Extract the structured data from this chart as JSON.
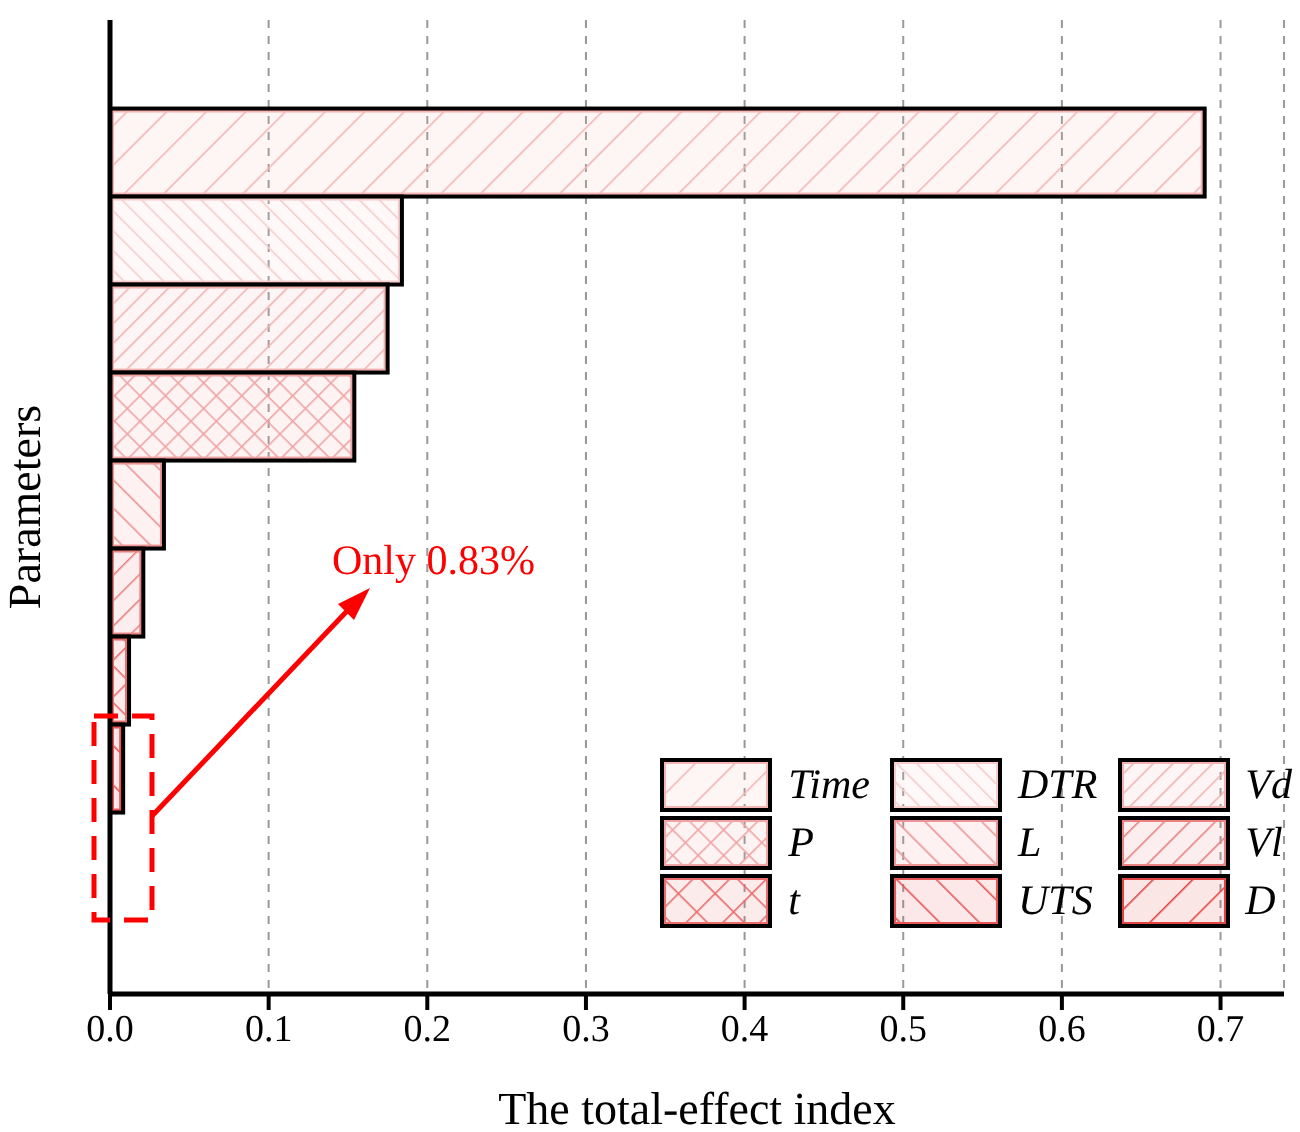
{
  "chart_data": {
    "type": "bar",
    "orientation": "horizontal",
    "xlabel": "The total-effect index",
    "ylabel": "Parameters",
    "categories": [
      null,
      null,
      null,
      null,
      null,
      null,
      null,
      null,
      null,
      null,
      null
    ],
    "series": [
      {
        "name": "Time",
        "color": "#f5b5b5",
        "values": [
          null,
          0.69,
          null,
          null,
          null,
          null,
          null,
          null,
          null,
          null,
          null
        ]
      },
      {
        "name": "DTR",
        "color": "#f6cccc",
        "values": [
          null,
          null,
          0.184,
          null,
          null,
          null,
          null,
          null,
          null,
          null,
          null
        ]
      },
      {
        "name": "Vd",
        "color": "#f2b2b2",
        "values": [
          null,
          null,
          null,
          0.175,
          null,
          null,
          null,
          null,
          null,
          null,
          null
        ]
      },
      {
        "name": "P",
        "color": "#f0a4a4",
        "values": [
          null,
          null,
          null,
          null,
          0.154,
          null,
          null,
          null,
          null,
          null,
          null
        ]
      },
      {
        "name": "L",
        "color": "#ee9494",
        "values": [
          null,
          null,
          null,
          null,
          null,
          0.034,
          null,
          null,
          null,
          null,
          null
        ]
      },
      {
        "name": "Vl",
        "color": "#ea8282",
        "values": [
          null,
          null,
          null,
          null,
          null,
          null,
          0.021,
          null,
          null,
          null,
          null
        ]
      },
      {
        "name": "t",
        "color": "#ea6c6c",
        "values": [
          null,
          null,
          null,
          null,
          null,
          null,
          null,
          0.012,
          null,
          null,
          null
        ]
      },
      {
        "name": "UTS",
        "color": "#e65656",
        "values": [
          null,
          null,
          null,
          null,
          null,
          null,
          null,
          null,
          0.0083,
          null,
          null
        ]
      },
      {
        "name": "D",
        "color": "#e24444",
        "values": [
          null,
          null,
          null,
          null,
          null,
          null,
          null,
          null,
          null,
          null,
          null
        ]
      }
    ],
    "xlim": [
      0,
      0.74
    ],
    "xticks": [
      {
        "value": 0,
        "label": "0.0"
      },
      0.1,
      0.2,
      0.3,
      0.4,
      0.5,
      0.6,
      0.7
    ],
    "grid": "x",
    "legend": "bottom right",
    "annotations": [
      "Only 0.83%"
    ]
  }
}
